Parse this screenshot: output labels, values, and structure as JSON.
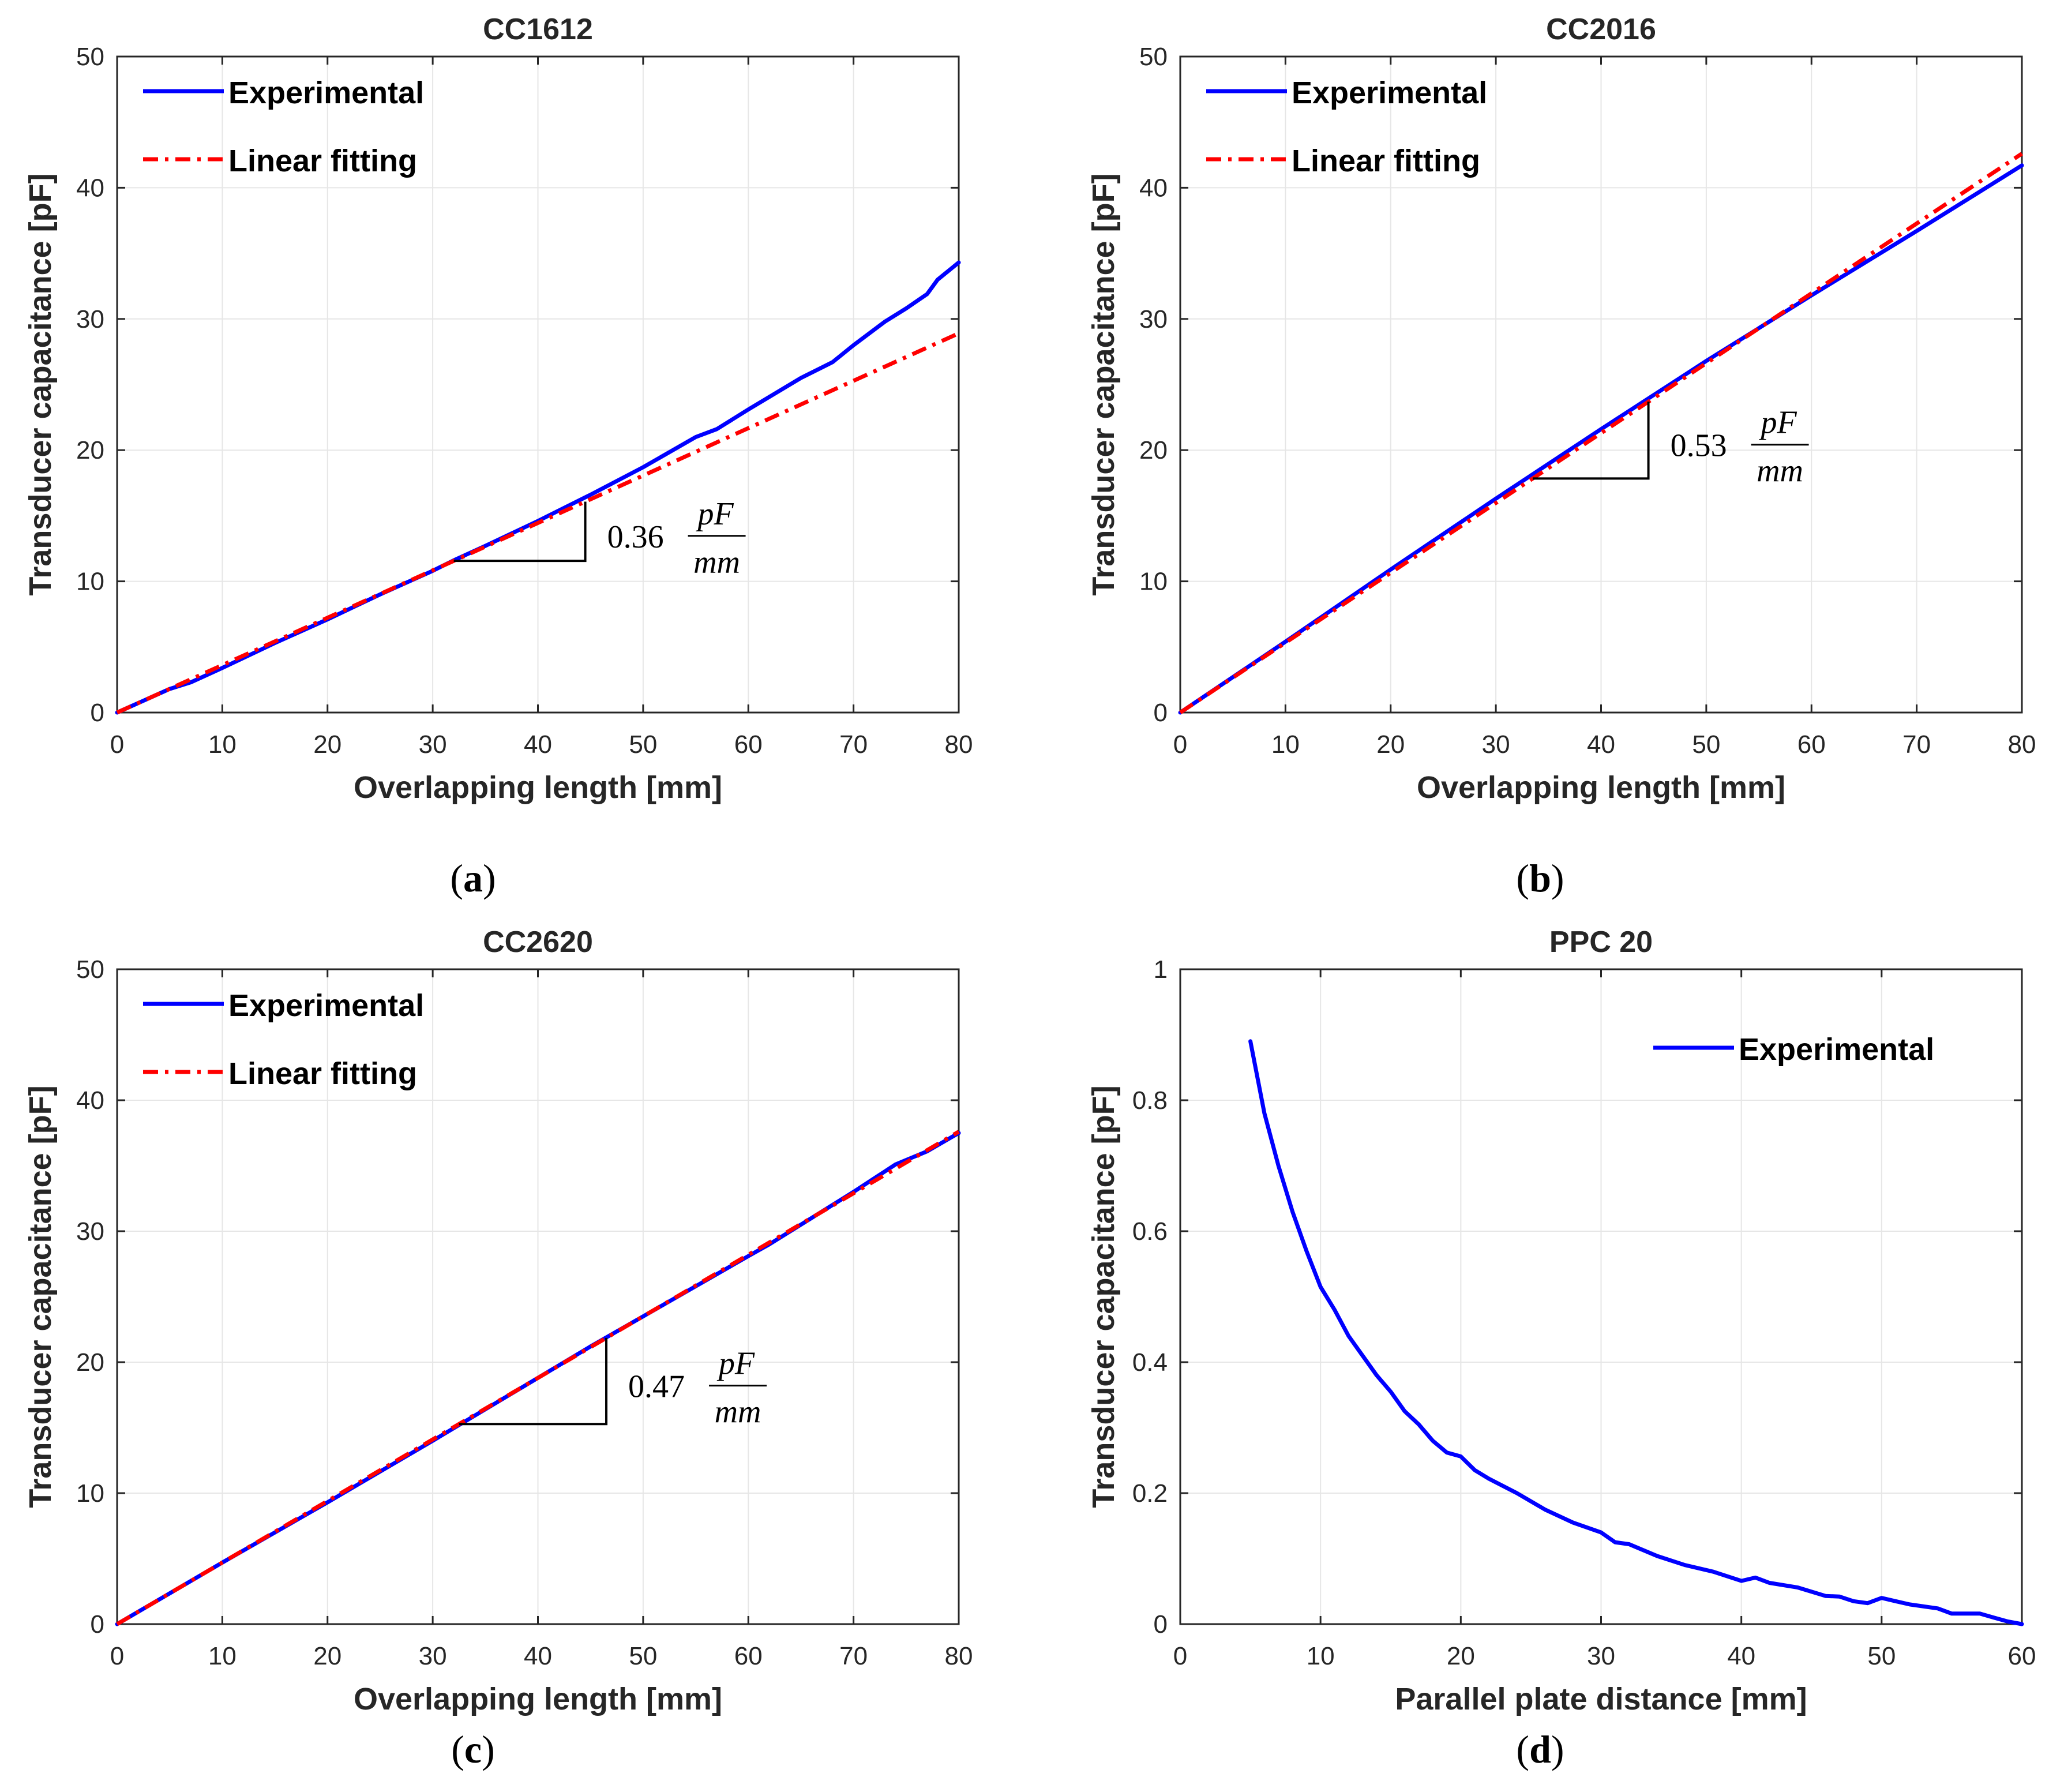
{
  "chart_data": [
    {
      "type": "line",
      "title": "CC1612",
      "xlabel": "Overlapping length [mm]",
      "ylabel": "Transducer capacitance [pF]",
      "xlim": [
        0,
        80
      ],
      "ylim": [
        0,
        50
      ],
      "xticks": [
        "0",
        "10",
        "20",
        "30",
        "40",
        "50",
        "60",
        "70",
        "80"
      ],
      "yticks": [
        "0",
        "10",
        "20",
        "30",
        "40",
        "50"
      ],
      "grid": true,
      "legend_placement": "top-left",
      "series": [
        {
          "name": "Experimental",
          "color": "#0000ff",
          "style": "solid",
          "x": [
            0,
            5,
            7,
            10,
            15,
            20,
            25,
            30,
            32,
            35,
            40,
            45,
            50,
            55,
            57,
            60,
            65,
            68,
            70,
            73,
            75,
            77,
            78,
            80
          ],
          "y": [
            0,
            1.8,
            2.3,
            3.4,
            5.3,
            7.1,
            9.0,
            10.8,
            11.6,
            12.7,
            14.6,
            16.6,
            18.7,
            21.0,
            21.6,
            23.1,
            25.5,
            26.7,
            28.0,
            29.8,
            30.8,
            31.9,
            33.0,
            34.3
          ]
        },
        {
          "name": "Linear fitting",
          "color": "#ff0000",
          "style": "dash-dot",
          "x": [
            0,
            80
          ],
          "y": [
            0,
            28.9
          ]
        }
      ],
      "annotation": {
        "slope": "0.36",
        "numerator": "pF",
        "denominator": "mm",
        "x1": 32,
        "x2": 44.5
      },
      "caption_letter": "a"
    },
    {
      "type": "line",
      "title": "CC2016",
      "xlabel": "Overlapping length [mm]",
      "ylabel": "Transducer capacitance [pF]",
      "xlim": [
        0,
        80
      ],
      "ylim": [
        0,
        50
      ],
      "xticks": [
        "0",
        "10",
        "20",
        "30",
        "40",
        "50",
        "60",
        "70",
        "80"
      ],
      "yticks": [
        "0",
        "10",
        "20",
        "30",
        "40",
        "50"
      ],
      "grid": true,
      "legend_placement": "top-left",
      "series": [
        {
          "name": "Experimental",
          "color": "#0000ff",
          "style": "solid",
          "x": [
            0,
            10,
            20,
            30,
            40,
            50,
            60,
            70,
            80
          ],
          "y": [
            0,
            5.4,
            10.9,
            16.3,
            21.6,
            26.8,
            31.8,
            36.7,
            41.7
          ]
        },
        {
          "name": "Linear fitting",
          "color": "#ff0000",
          "style": "dash-dot",
          "x": [
            0,
            80
          ],
          "y": [
            0,
            42.6
          ]
        }
      ],
      "annotation": {
        "slope": "0.53",
        "numerator": "pF",
        "denominator": "mm",
        "x1": 33.5,
        "x2": 44.5
      },
      "caption_letter": "b"
    },
    {
      "type": "line",
      "title": "CC2620",
      "xlabel": "Overlapping length [mm]",
      "ylabel": "Transducer capacitance [pF]",
      "xlim": [
        0,
        80
      ],
      "ylim": [
        0,
        50
      ],
      "xticks": [
        "0",
        "10",
        "20",
        "30",
        "40",
        "50",
        "60",
        "70",
        "80"
      ],
      "yticks": [
        "0",
        "10",
        "20",
        "30",
        "40",
        "50"
      ],
      "grid": true,
      "legend_placement": "top-left",
      "series": [
        {
          "name": "Experimental",
          "color": "#0000ff",
          "style": "solid",
          "x": [
            0,
            10,
            20,
            30,
            40,
            45,
            50,
            60,
            62,
            70,
            74,
            77,
            80
          ],
          "y": [
            0,
            4.7,
            9.3,
            14.0,
            18.8,
            21.2,
            23.5,
            28.1,
            29.0,
            33.0,
            35.1,
            36.1,
            37.5
          ]
        },
        {
          "name": "Linear fitting",
          "color": "#ff0000",
          "style": "dash-dot",
          "x": [
            0,
            80
          ],
          "y": [
            0,
            37.6
          ]
        }
      ],
      "annotation": {
        "slope": "0.47",
        "numerator": "pF",
        "denominator": "mm",
        "x1": 32.5,
        "x2": 46.5
      },
      "caption_letter": "c"
    },
    {
      "type": "line",
      "title": "PPC 20",
      "xlabel": "Parallel plate distance [mm]",
      "ylabel": "Transducer capacitance [pF]",
      "xlim": [
        0,
        60
      ],
      "ylim": [
        0,
        1
      ],
      "xticks": [
        "0",
        "10",
        "20",
        "30",
        "40",
        "50",
        "60"
      ],
      "yticks": [
        "0",
        "0.2",
        "0.4",
        "0.6",
        "0.8",
        "1"
      ],
      "grid": true,
      "legend_placement": "top-right",
      "series": [
        {
          "name": "Experimental",
          "color": "#0000ff",
          "style": "solid",
          "x": [
            5,
            6,
            7,
            8,
            9,
            10,
            11,
            12,
            13,
            14,
            15,
            16,
            17,
            18,
            19,
            20,
            21,
            22,
            24,
            26,
            28,
            30,
            31,
            32,
            34,
            36,
            38,
            40,
            41,
            42,
            44,
            46,
            47,
            48,
            49,
            50,
            51,
            52,
            54,
            55,
            57,
            58,
            59,
            60
          ],
          "y": [
            0.89,
            0.78,
            0.7,
            0.63,
            0.57,
            0.515,
            0.48,
            0.44,
            0.41,
            0.38,
            0.355,
            0.325,
            0.305,
            0.28,
            0.262,
            0.256,
            0.235,
            0.222,
            0.2,
            0.175,
            0.155,
            0.14,
            0.125,
            0.122,
            0.104,
            0.09,
            0.08,
            0.066,
            0.071,
            0.063,
            0.056,
            0.043,
            0.042,
            0.035,
            0.032,
            0.04,
            0.035,
            0.03,
            0.024,
            0.016,
            0.016,
            0.01,
            0.004,
            0.0
          ]
        }
      ],
      "caption_letter": "d"
    }
  ]
}
